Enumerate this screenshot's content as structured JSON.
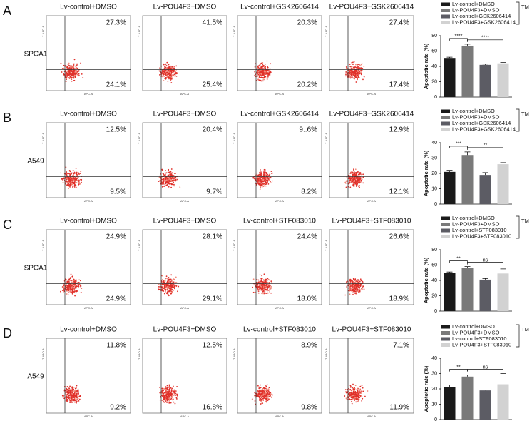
{
  "flow_axis": {
    "x_label": "APC-A",
    "y_label": "7-AAD-A"
  },
  "panels": [
    {
      "letter": "A",
      "cell": "SPCA1",
      "conditions": [
        "Lv-control+DMSO",
        "Lv-POU4F3+DMSO",
        "Lv-control+GSK2606414",
        "Lv-POU4F3+GSK2606414"
      ],
      "quadrants": [
        {
          "upper": "27.3%",
          "lower": "24.1%"
        },
        {
          "upper": "41.5%",
          "lower": "25.4%"
        },
        {
          "upper": "20.3%",
          "lower": "20.2%"
        },
        {
          "upper": "27.4%",
          "lower": "17.4%"
        }
      ]
    },
    {
      "letter": "B",
      "cell": "A549",
      "conditions": [
        "Lv-control+DMSO",
        "Lv-POU4F3+DMSO",
        "Lv-control+GSK2606414",
        "Lv-POU4F3+GSK2606414"
      ],
      "quadrants": [
        {
          "upper": "12.5%",
          "lower": "9.5%"
        },
        {
          "upper": "20.4%",
          "lower": "9.7%"
        },
        {
          "upper": "9..6%",
          "lower": "8.2%"
        },
        {
          "upper": "12.9%",
          "lower": "12.1%"
        }
      ]
    },
    {
      "letter": "C",
      "cell": "SPCA1",
      "conditions": [
        "Lv-control+DMSO",
        "Lv-POU4F3+DMSO",
        "Lv-control+STF083010",
        "Lv-POU4F3+STF083010"
      ],
      "quadrants": [
        {
          "upper": "24.9%",
          "lower": "24.9%"
        },
        {
          "upper": "28.1%",
          "lower": "29.1%"
        },
        {
          "upper": "24.4%",
          "lower": "18.0%"
        },
        {
          "upper": "26.6%",
          "lower": "18.9%"
        }
      ]
    },
    {
      "letter": "D",
      "cell": "A549",
      "conditions": [
        "Lv-control+DMSO",
        "Lv-POU4F3+DMSO",
        "Lv-control+STF083010",
        "Lv-POU4F3+STF083010"
      ],
      "quadrants": [
        {
          "upper": "11.8%",
          "lower": "9.2%"
        },
        {
          "upper": "12.5%",
          "lower": "16.8%"
        },
        {
          "upper": "8.9%",
          "lower": "9.8%"
        },
        {
          "upper": "7.1%",
          "lower": "11.9%"
        }
      ]
    }
  ],
  "chart_data": [
    {
      "type": "bar",
      "y_label": "Apoptotic rate (%)",
      "legend_tag": "TM",
      "categories": [
        "Lv-control+DMSO",
        "Lv-POU4F3+DMSO",
        "Lv-control+GSK2606414",
        "Lv-POU4F3+GSK2606414"
      ],
      "colors": [
        "#1a1a1a",
        "#7a7a7a",
        "#5c5c64",
        "#d2d2d2"
      ],
      "values": [
        51,
        67,
        42,
        44
      ],
      "errors": [
        1,
        2,
        1,
        1
      ],
      "ylim": [
        0,
        80
      ],
      "yticks": [
        0,
        20,
        40,
        60,
        80
      ],
      "significance": [
        "****",
        "****"
      ]
    },
    {
      "type": "bar",
      "y_label": "Apoptotic rate (%)",
      "legend_tag": "TM",
      "categories": [
        "Lv-control+DMSO",
        "Lv-POU4F3+DMSO",
        "Lv-control+GSK2606414",
        "Lv-POU4F3+GSK2606414"
      ],
      "colors": [
        "#1a1a1a",
        "#7a7a7a",
        "#5c5c64",
        "#d2d2d2"
      ],
      "values": [
        21,
        32,
        19,
        26
      ],
      "errors": [
        1,
        2,
        1.5,
        1
      ],
      "ylim": [
        0,
        40
      ],
      "yticks": [
        0,
        10,
        20,
        30,
        40
      ],
      "significance": [
        "***",
        "**"
      ]
    },
    {
      "type": "bar",
      "y_label": "Apoptotic rate (%)",
      "legend_tag": "TM",
      "categories": [
        "Lv-control+DMSO",
        "Lv-POU4F3+DMSO",
        "Lv-control+STF083010",
        "Lv-POU4F3+STF083010"
      ],
      "colors": [
        "#1a1a1a",
        "#7a7a7a",
        "#5c5c64",
        "#d2d2d2"
      ],
      "values": [
        50,
        56,
        41,
        49
      ],
      "errors": [
        1,
        2,
        1.5,
        6
      ],
      "ylim": [
        0,
        80
      ],
      "yticks": [
        0,
        20,
        40,
        60,
        80
      ],
      "significance": [
        "**",
        "ns"
      ]
    },
    {
      "type": "bar",
      "y_label": "Apoptotic rate (%)",
      "legend_tag": "TM",
      "categories": [
        "Lv-control+DMSO",
        "Lv-POU4F3+DMSO",
        "Lv-control+STF083010",
        "Lv-POU4F3+STF083010"
      ],
      "colors": [
        "#1a1a1a",
        "#7a7a7a",
        "#5c5c64",
        "#d2d2d2"
      ],
      "values": [
        21,
        28,
        19,
        23
      ],
      "errors": [
        1.5,
        1,
        0.3,
        7
      ],
      "ylim": [
        0,
        40
      ],
      "yticks": [
        0,
        10,
        20,
        30,
        40
      ],
      "significance": [
        "**",
        "ns"
      ]
    }
  ]
}
